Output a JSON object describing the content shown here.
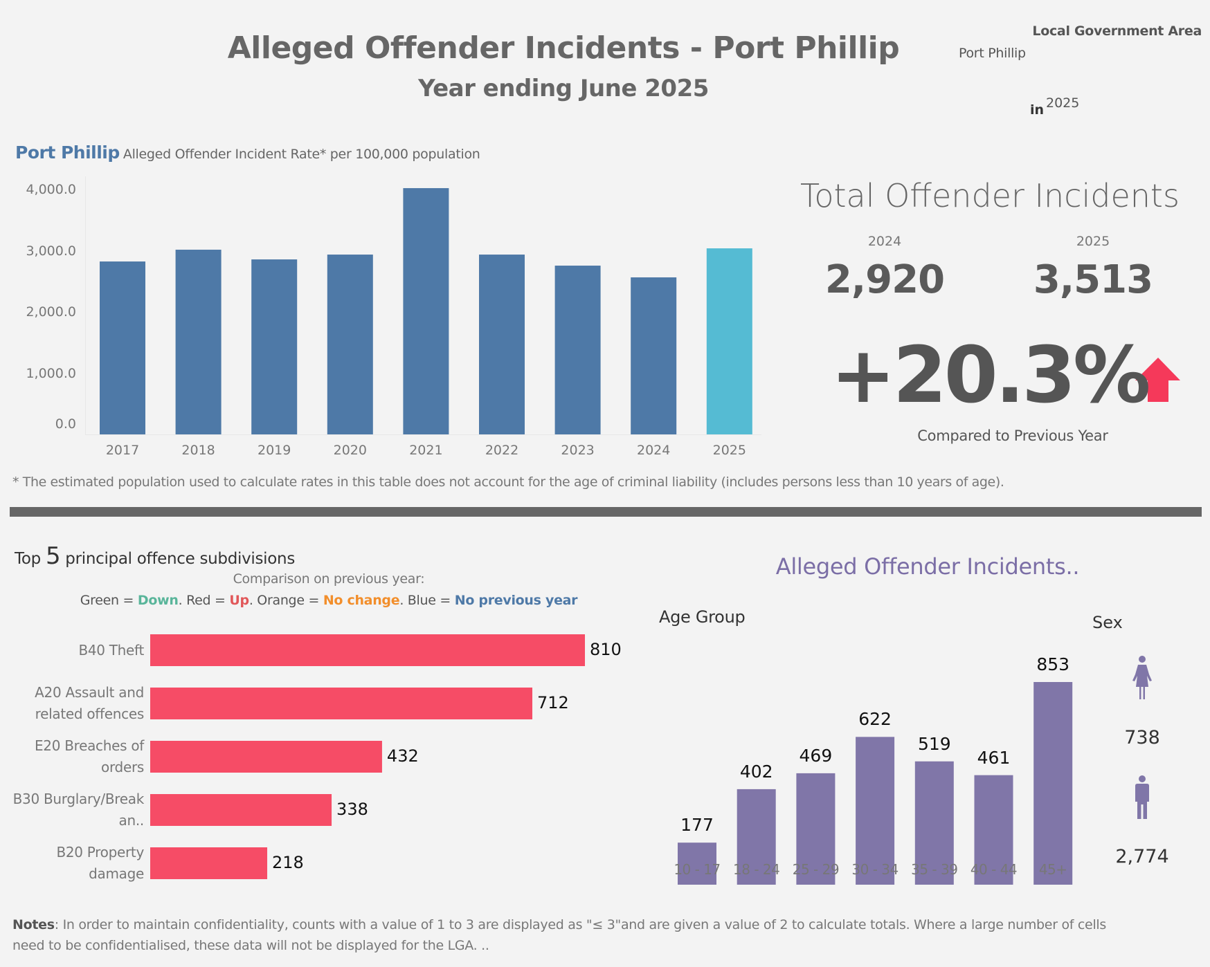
{
  "header": {
    "title": "Alleged Offender Incidents - Port Phillip",
    "subtitle": "Year ending June 2025",
    "lga_label": "Local Government Area",
    "lga_value": "Port Phillip",
    "in_label": "in",
    "year_value": "2025"
  },
  "rate_chart": {
    "lga": "Port Phillip",
    "description": "Alleged Offender Incident Rate* per 100,000 population",
    "footnote": "* The estimated population used to calculate rates in this table does not account for the age of criminal liability (includes persons less than 10 years of age)."
  },
  "kpi": {
    "title": "Total Offender Incidents",
    "prev_year": "2024",
    "curr_year": "2025",
    "prev_value": "2,920",
    "curr_value": "3,513",
    "change": "+20.3%",
    "change_direction": "up",
    "change_icon": "arrow-up-icon",
    "compare_label": "Compared to Previous Year"
  },
  "top5": {
    "title_prefix": "Top",
    "title_number": "5",
    "title_suffix": "principal offence subdivisions",
    "comparison_label": "Comparison on previous year:",
    "legend": {
      "green_prefix": "Green = ",
      "green": "Down",
      "sep1": ". Red = ",
      "red": "Up",
      "sep2": ". Orange = ",
      "orange": "No change",
      "sep3": ". Blue = ",
      "blue": "No previous year"
    }
  },
  "age_section": {
    "title": "Alleged Offender Incidents..",
    "age_label": "Age Group",
    "sex_label": "Sex",
    "sex": [
      {
        "name": "Female",
        "icon": "female-icon",
        "value": "738"
      },
      {
        "name": "Male",
        "icon": "male-icon",
        "value": "2,774"
      }
    ]
  },
  "notes": {
    "label": "Notes",
    "text": ": In order to maintain confidentiality, counts with a value of 1 to 3  are displayed as \"≤ 3\"and are given a value of 2 to calculate totals. Where a large number of cells need to be confidentialised, these data will not be displayed for the LGA. .."
  },
  "colors": {
    "bar_default": "#4e79a7",
    "bar_current": "#55bbd3",
    "offence_up": "#f64c66",
    "age_bar": "#8076a8",
    "arrow_up": "#f5395a",
    "divider": "#666666"
  },
  "chart_data": [
    {
      "type": "bar",
      "title": "Port Phillip Alleged Offender Incident Rate* per 100,000 population",
      "categories": [
        "2017",
        "2018",
        "2019",
        "2020",
        "2021",
        "2022",
        "2023",
        "2024",
        "2025"
      ],
      "values": [
        2831,
        3024,
        2865,
        2944,
        4032,
        2944,
        2763,
        2571,
        3046
      ],
      "highlight": "2025",
      "xlabel": "",
      "ylabel": "",
      "yticks": [
        "0.0",
        "1,000.0",
        "2,000.0",
        "3,000.0",
        "4,000.0"
      ],
      "ylim": [
        0,
        4000
      ],
      "grid": false
    },
    {
      "type": "bar",
      "orientation": "horizontal",
      "title": "Top 5 principal offence subdivisions",
      "categories": [
        "B40 Theft",
        "A20 Assault and related offences",
        "E20 Breaches of orders",
        "B30 Burglary/Break an..",
        "B20 Property damage"
      ],
      "values": [
        810,
        712,
        432,
        338,
        218
      ],
      "status": [
        "Up",
        "Up",
        "Up",
        "Up",
        "Up"
      ]
    },
    {
      "type": "bar",
      "title": "Alleged Offender Incidents.. by Age Group",
      "categories": [
        "10 - 17",
        "18 - 24",
        "25 - 29",
        "30 - 34",
        "35 - 39",
        "40 - 44",
        "45+"
      ],
      "values": [
        177,
        402,
        469,
        622,
        519,
        461,
        853
      ]
    }
  ]
}
